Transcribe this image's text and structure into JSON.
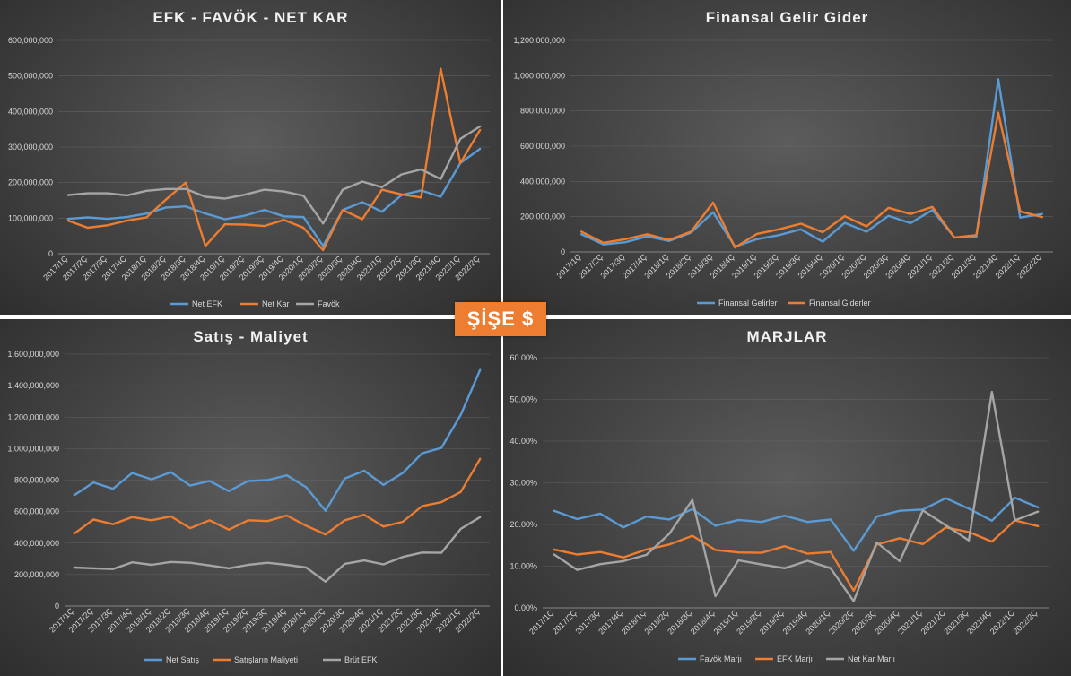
{
  "badge": "ŞİŞE $",
  "colors": {
    "blue": "#5b9bd5",
    "orange": "#ed7d31",
    "gray": "#a5a5a5"
  },
  "chart_data": [
    {
      "type": "line",
      "title": "EFK - FAVÖK - NET KAR",
      "categories": [
        "2017/1Ç",
        "2017/2Ç",
        "2017/3Ç",
        "2017/4Ç",
        "2018/1Ç",
        "2018/2Ç",
        "2018/3Ç",
        "2018/4Ç",
        "2019/1Ç",
        "2019/2Ç",
        "2019/3Ç",
        "2019/4Ç",
        "2020/1Ç",
        "2020/2Ç",
        "2020/3Ç",
        "2020/4Ç",
        "2021/1Ç",
        "2021/2Ç",
        "2021/3Ç",
        "2021/4Ç",
        "2022/1Ç",
        "2022/2Ç"
      ],
      "ylim": [
        0,
        600000000
      ],
      "yticks": [
        "0",
        "100,000,000",
        "200,000,000",
        "300,000,000",
        "400,000,000",
        "500,000,000",
        "600,000,000"
      ],
      "legend_position": "bottom",
      "series": [
        {
          "name": "Net EFK",
          "color": "#5b9bd5",
          "values": [
            98000000,
            102000000,
            98000000,
            103000000,
            113000000,
            130000000,
            133000000,
            113000000,
            97000000,
            107000000,
            123000000,
            105000000,
            103000000,
            22000000,
            123000000,
            145000000,
            118000000,
            165000000,
            178000000,
            160000000,
            255000000,
            295000000
          ]
        },
        {
          "name": "Net Kar",
          "color": "#ed7d31",
          "values": [
            93000000,
            73000000,
            80000000,
            93000000,
            102000000,
            153000000,
            200000000,
            22000000,
            83000000,
            82000000,
            78000000,
            95000000,
            73000000,
            10000000,
            123000000,
            97000000,
            180000000,
            167000000,
            158000000,
            520000000,
            255000000,
            348000000
          ]
        },
        {
          "name": "Favök",
          "color": "#a5a5a5",
          "values": [
            165000000,
            170000000,
            170000000,
            164000000,
            177000000,
            182000000,
            182000000,
            160000000,
            155000000,
            166000000,
            180000000,
            175000000,
            163000000,
            85000000,
            180000000,
            203000000,
            187000000,
            223000000,
            237000000,
            210000000,
            323000000,
            358000000
          ]
        }
      ]
    },
    {
      "type": "line",
      "title": "Finansal Gelir Gider",
      "categories": [
        "2017/1Ç",
        "2017/2Ç",
        "2017/3Ç",
        "2017/4Ç",
        "2018/1Ç",
        "2018/2Ç",
        "2018/3Ç",
        "2018/4Ç",
        "2019/1Ç",
        "2019/2Ç",
        "2019/3Ç",
        "2019/4Ç",
        "2020/1Ç",
        "2020/2Ç",
        "2020/3Ç",
        "2020/4Ç",
        "2021/1Ç",
        "2021/2Ç",
        "2021/3Ç",
        "2021/4Ç",
        "2022/1Ç",
        "2022/2Ç"
      ],
      "ylim": [
        0,
        1200000000
      ],
      "yticks": [
        "0",
        "200,000,000",
        "400,000,000",
        "600,000,000",
        "800,000,000",
        "1,000,000,000",
        "1,200,000,000"
      ],
      "legend_position": "bottom",
      "series": [
        {
          "name": "Finansal Gelirler",
          "color": "#5b9bd5",
          "values": [
            100000000,
            42000000,
            55000000,
            88000000,
            62000000,
            110000000,
            225000000,
            30000000,
            72000000,
            95000000,
            128000000,
            58000000,
            165000000,
            115000000,
            205000000,
            163000000,
            238000000,
            82000000,
            85000000,
            980000000,
            195000000,
            215000000
          ]
        },
        {
          "name": "Finansal Giderler",
          "color": "#ed7d31",
          "values": [
            115000000,
            52000000,
            72000000,
            100000000,
            68000000,
            115000000,
            280000000,
            25000000,
            102000000,
            128000000,
            160000000,
            112000000,
            203000000,
            145000000,
            250000000,
            215000000,
            255000000,
            82000000,
            95000000,
            790000000,
            230000000,
            198000000
          ]
        }
      ]
    },
    {
      "type": "line",
      "title": "Satış - Maliyet",
      "categories": [
        "2017/1Ç",
        "2017/2Ç",
        "2017/3Ç",
        "2017/4Ç",
        "2018/1Ç",
        "2018/2Ç",
        "2018/3Ç",
        "2018/4Ç",
        "2019/1Ç",
        "2019/2Ç",
        "2019/3Ç",
        "2019/4Ç",
        "2020/1Ç",
        "2020/2Ç",
        "2020/3Ç",
        "2020/4Ç",
        "2021/1Ç",
        "2021/2Ç",
        "2021/3Ç",
        "2021/4Ç",
        "2022/1Ç",
        "2022/2Ç"
      ],
      "ylim": [
        0,
        1600000000
      ],
      "yticks": [
        "0",
        "200,000,000",
        "400,000,000",
        "600,000,000",
        "800,000,000",
        "1,000,000,000",
        "1,200,000,000",
        "1,400,000,000",
        "1,600,000,000"
      ],
      "legend_position": "bottom",
      "series": [
        {
          "name": "Net Satış",
          "color": "#5b9bd5",
          "values": [
            705000000,
            785000000,
            745000000,
            845000000,
            805000000,
            850000000,
            765000000,
            795000000,
            730000000,
            795000000,
            800000000,
            830000000,
            755000000,
            605000000,
            810000000,
            860000000,
            770000000,
            845000000,
            970000000,
            1005000000,
            1215000000,
            1500000000
          ]
        },
        {
          "name": "Satışların Maliyeti",
          "color": "#ed7d31",
          "values": [
            460000000,
            550000000,
            520000000,
            565000000,
            545000000,
            570000000,
            495000000,
            545000000,
            485000000,
            545000000,
            540000000,
            575000000,
            510000000,
            455000000,
            545000000,
            580000000,
            505000000,
            535000000,
            635000000,
            660000000,
            725000000,
            935000000
          ]
        },
        {
          "name": "Brüt EFK",
          "color": "#a5a5a5",
          "values": [
            245000000,
            240000000,
            235000000,
            278000000,
            262000000,
            280000000,
            275000000,
            258000000,
            240000000,
            262000000,
            275000000,
            262000000,
            245000000,
            155000000,
            268000000,
            290000000,
            265000000,
            312000000,
            340000000,
            338000000,
            490000000,
            565000000
          ]
        }
      ]
    },
    {
      "type": "line",
      "title": "MARJLAR",
      "categories": [
        "2017/1Ç",
        "2017/2Ç",
        "2017/3Ç",
        "2017/4Ç",
        "2018/1Ç",
        "2018/2Ç",
        "2018/3Ç",
        "2018/4Ç",
        "2019/1Ç",
        "2019/2Ç",
        "2019/3Ç",
        "2019/4Ç",
        "2020/1Ç",
        "2020/2Ç",
        "2020/3Ç",
        "2020/4Ç",
        "2021/1Ç",
        "2021/2Ç",
        "2021/3Ç",
        "2021/4Ç",
        "2022/1Ç",
        "2022/2Ç"
      ],
      "ylim": [
        0,
        0.6
      ],
      "yticks": [
        "0.00%",
        "10.00%",
        "20.00%",
        "30.00%",
        "40.00%",
        "50.00%",
        "60.00%"
      ],
      "legend_position": "bottom",
      "series": [
        {
          "name": "Favök Marjı",
          "color": "#5b9bd5",
          "values": [
            0.233,
            0.213,
            0.226,
            0.193,
            0.219,
            0.212,
            0.237,
            0.197,
            0.211,
            0.206,
            0.221,
            0.206,
            0.212,
            0.137,
            0.219,
            0.233,
            0.236,
            0.263,
            0.238,
            0.209,
            0.264,
            0.241
          ]
        },
        {
          "name": "EFK Marjı",
          "color": "#ed7d31",
          "values": [
            0.14,
            0.128,
            0.134,
            0.121,
            0.14,
            0.152,
            0.173,
            0.139,
            0.133,
            0.132,
            0.148,
            0.13,
            0.134,
            0.041,
            0.152,
            0.167,
            0.153,
            0.193,
            0.182,
            0.159,
            0.21,
            0.196
          ]
        },
        {
          "name": "Net Kar Marjı",
          "color": "#a5a5a5",
          "values": [
            0.128,
            0.091,
            0.105,
            0.112,
            0.127,
            0.178,
            0.259,
            0.028,
            0.114,
            0.104,
            0.095,
            0.113,
            0.095,
            0.016,
            0.157,
            0.112,
            0.234,
            0.198,
            0.162,
            0.518,
            0.21,
            0.231
          ]
        }
      ]
    }
  ]
}
